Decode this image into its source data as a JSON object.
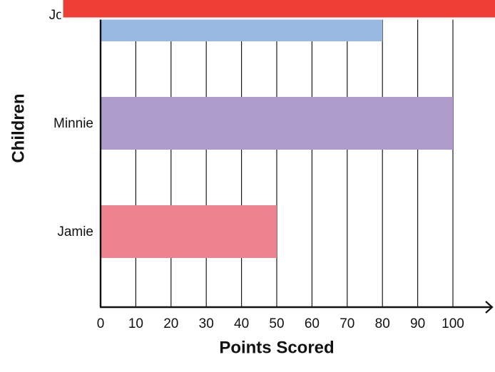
{
  "chart_data": {
    "type": "bar",
    "orientation": "horizontal",
    "categories": [
      "Joanna",
      "Minnie",
      "Jamie"
    ],
    "values": [
      80,
      100,
      50
    ],
    "colors": [
      "#97b9e2",
      "#ad9bcb",
      "#ee8390"
    ],
    "xlabel": "Points Scored",
    "ylabel": "Children",
    "xlim": [
      0,
      100
    ],
    "xticks": [
      0,
      10,
      20,
      30,
      40,
      50,
      60,
      70,
      80,
      90,
      100
    ],
    "grid": "vertical",
    "legend": "none"
  },
  "overlay": {
    "banner_color": "#ef3e36",
    "banner_border_color": "#ffffff"
  }
}
